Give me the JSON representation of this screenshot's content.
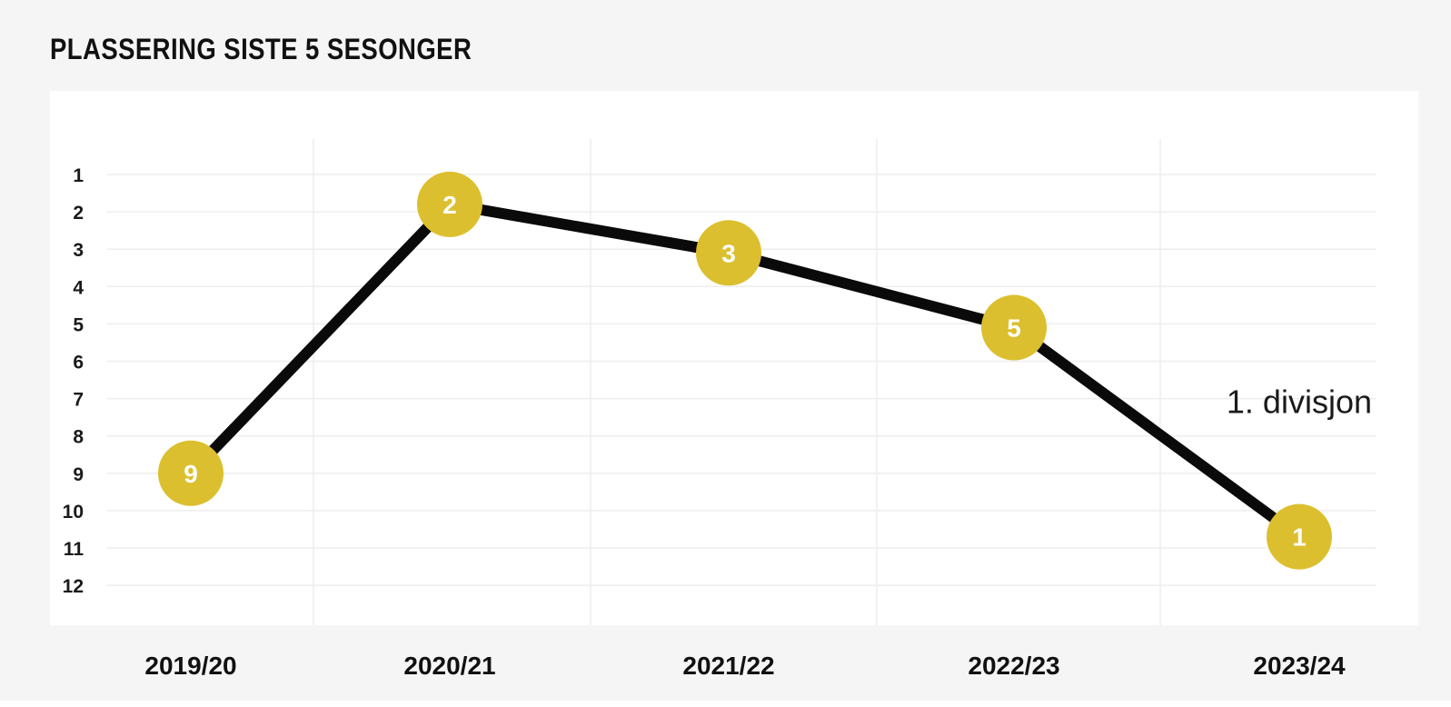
{
  "colors": {
    "panel": "#f5f5f5",
    "plot_bg": "#ffffff",
    "grid": "#eeeeee",
    "line": "#0a0a0a",
    "marker": "#dcbf2e",
    "marker_text": "#ffffff"
  },
  "chart_data": {
    "type": "line",
    "title": "PLASSERING SISTE 5 SESONGER",
    "categories": [
      "2019/20",
      "2020/21",
      "2021/22",
      "2022/23",
      "2023/24"
    ],
    "y_ticks": [
      "1",
      "2",
      "3",
      "4",
      "5",
      "6",
      "7",
      "8",
      "9",
      "10",
      "11",
      "12"
    ],
    "ylim": [
      1,
      12
    ],
    "y_inverted": true,
    "grid": true,
    "series": [
      {
        "positions": [
          9,
          1.8,
          3.1,
          5.1,
          10.7
        ],
        "labels": [
          "9",
          "2",
          "3",
          "5",
          "1"
        ]
      }
    ],
    "annotations": [
      {
        "text": "1. divisjon",
        "near_category": "2023/24",
        "y": 7.1
      }
    ]
  }
}
